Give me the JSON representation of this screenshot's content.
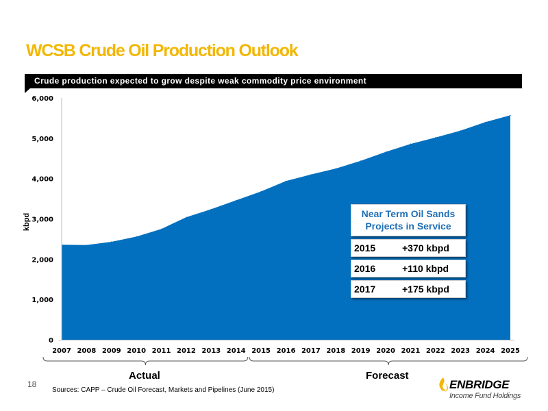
{
  "title": "WCSB Crude Oil Production Outlook",
  "banner": "Crude production expected to grow despite weak commodity price environment",
  "page_number": "18",
  "sources": "Sources: CAPP – Crude Oil Forecast, Markets and Pipelines (June 2015)",
  "logo": {
    "name": "ENBRIDGE",
    "sub": "Income Fund Holdings"
  },
  "callout": {
    "title": "Near Term Oil Sands Projects in Service",
    "rows": [
      {
        "year": "2015",
        "value": "+370 kbpd"
      },
      {
        "year": "2016",
        "value": "+110 kbpd"
      },
      {
        "year": "2017",
        "value": "+175 kbpd"
      }
    ]
  },
  "groups": {
    "actual": "Actual",
    "forecast": "Forecast"
  },
  "colors": {
    "area": "#0270bf",
    "title": "#f2b705",
    "callout_text": "#1f6fb4"
  },
  "chart_data": {
    "type": "area",
    "title": "",
    "xlabel": "",
    "ylabel": "kbpd",
    "ylim": [
      0,
      6000
    ],
    "yticks": [
      0,
      1000,
      2000,
      3000,
      4000,
      5000,
      6000
    ],
    "ytick_labels": [
      "0",
      "1,000",
      "2,000",
      "3,000",
      "4,000",
      "5,000",
      "6,000"
    ],
    "categories": [
      "2007",
      "2008",
      "2009",
      "2010",
      "2011",
      "2012",
      "2013",
      "2014",
      "2015",
      "2016",
      "2017",
      "2018",
      "2019",
      "2020",
      "2021",
      "2022",
      "2023",
      "2024",
      "2025"
    ],
    "values": [
      2360,
      2350,
      2430,
      2560,
      2750,
      3040,
      3240,
      3460,
      3680,
      3940,
      4100,
      4250,
      4440,
      4660,
      4860,
      5020,
      5190,
      5400,
      5570
    ],
    "grid": false,
    "legend": "none"
  }
}
